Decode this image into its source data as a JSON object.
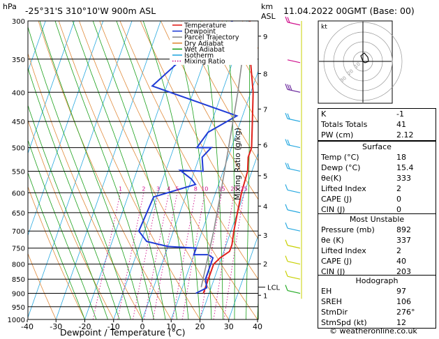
{
  "header": {
    "hpa_label": "hPa",
    "location": "-25°31'S  310°10'W  900m  ASL",
    "km_label": "km",
    "asl_label": "ASL",
    "datetime": "11.04.2022  00GMT  (Base: 00)"
  },
  "legend": [
    {
      "label": "Temperature",
      "color": "#e0201b"
    },
    {
      "label": "Dewpoint",
      "color": "#1f3bd6"
    },
    {
      "label": "Parcel Trajectory",
      "color": "#8c8c8c"
    },
    {
      "label": "Dry Adiabat",
      "color": "#e08a3a"
    },
    {
      "label": "Wet Adiabat",
      "color": "#1aa01a"
    },
    {
      "label": "Isotherm",
      "color": "#28a9e0"
    },
    {
      "label": "Mixing Ratio",
      "color": "#d0108c"
    }
  ],
  "chart_data": {
    "type": "line",
    "xlabel": "Dewpoint / Temperature (°C)",
    "ylabel_right": "Mixing Ratio (g/kg)",
    "x_ticks": [
      -40,
      -30,
      -20,
      -10,
      0,
      10,
      20,
      30,
      40
    ],
    "p_ticks": [
      300,
      350,
      400,
      450,
      500,
      550,
      600,
      650,
      700,
      750,
      800,
      850,
      900,
      950,
      1000
    ],
    "km_ticks": [
      {
        "label": "9",
        "p": 319
      },
      {
        "label": "8",
        "p": 371
      },
      {
        "label": "7",
        "p": 428
      },
      {
        "label": "6",
        "p": 494
      },
      {
        "label": "5",
        "p": 560
      },
      {
        "label": "4",
        "p": 633
      },
      {
        "label": "3",
        "p": 712
      },
      {
        "label": "2",
        "p": 799
      },
      {
        "label": "1",
        "p": 907
      }
    ],
    "lcl": {
      "label": "LCL",
      "p": 878
    },
    "mixing_ratio_labels": [
      "1",
      "2",
      "3",
      "4",
      "5",
      "8",
      "10",
      "15",
      "20",
      "25"
    ],
    "series": [
      {
        "name": "Temperature",
        "color": "#e0201b",
        "points": [
          [
            1.0,
            300
          ],
          [
            5.8,
            350
          ],
          [
            10.8,
            400
          ],
          [
            14.1,
            450
          ],
          [
            17.0,
            500
          ],
          [
            17.0,
            520
          ],
          [
            18.5,
            550
          ],
          [
            19.0,
            600
          ],
          [
            20.0,
            650
          ],
          [
            21.0,
            700
          ],
          [
            22.0,
            740
          ],
          [
            22.0,
            760
          ],
          [
            19.5,
            780
          ],
          [
            18.0,
            800
          ],
          [
            18.0,
            850
          ],
          [
            18.0,
            900
          ]
        ]
      },
      {
        "name": "Dewpoint",
        "color": "#1f3bd6",
        "points": [
          [
            -5,
            300
          ],
          [
            -18,
            350
          ],
          [
            -25,
            390
          ],
          [
            8,
            440
          ],
          [
            0,
            470
          ],
          [
            -2,
            500
          ],
          [
            3,
            500
          ],
          [
            1,
            520
          ],
          [
            3,
            550
          ],
          [
            -5,
            548
          ],
          [
            0,
            568
          ],
          [
            2,
            580
          ],
          [
            -11,
            610
          ],
          [
            -12,
            700
          ],
          [
            -8,
            730
          ],
          [
            0,
            745
          ],
          [
            10,
            750
          ],
          [
            10,
            770
          ],
          [
            15,
            770
          ],
          [
            17,
            780
          ],
          [
            17,
            850
          ],
          [
            18.5,
            880
          ],
          [
            15.4,
            900
          ]
        ]
      },
      {
        "name": "Parcel Trajectory",
        "color": "#8c8c8c",
        "points": [
          [
            16.5,
            878
          ],
          [
            15.5,
            800
          ],
          [
            14.0,
            700
          ],
          [
            11.8,
            600
          ],
          [
            9.0,
            500
          ],
          [
            5.5,
            400
          ],
          [
            3.0,
            350
          ],
          [
            0.6,
            300
          ]
        ]
      }
    ]
  },
  "hodograph": {
    "label": "kt",
    "ring_labels": [
      "10",
      "20",
      "30"
    ]
  },
  "indices": [
    {
      "label": "K",
      "value": "-1"
    },
    {
      "label": "Totals Totals",
      "value": "41"
    },
    {
      "label": "PW (cm)",
      "value": "2.12"
    }
  ],
  "surface": {
    "title": "Surface",
    "rows": [
      {
        "label": "Temp (°C)",
        "value": "18"
      },
      {
        "label": "Dewp (°C)",
        "value": "15.4"
      },
      {
        "label": "θe(K)",
        "value": "333"
      },
      {
        "label": "Lifted Index",
        "value": "2"
      },
      {
        "label": "CAPE (J)",
        "value": "0"
      },
      {
        "label": "CIN (J)",
        "value": "0"
      }
    ]
  },
  "most_unstable": {
    "title": "Most Unstable",
    "rows": [
      {
        "label": "Pressure (mb)",
        "value": "892"
      },
      {
        "label": "θe (K)",
        "value": "337"
      },
      {
        "label": "Lifted Index",
        "value": "2"
      },
      {
        "label": "CAPE (J)",
        "value": "40"
      },
      {
        "label": "CIN (J)",
        "value": "203"
      }
    ]
  },
  "hodo_table": {
    "title": "Hodograph",
    "rows": [
      {
        "label": "EH",
        "value": "97"
      },
      {
        "label": "SREH",
        "value": "106"
      },
      {
        "label": "StmDir",
        "value": "276°"
      },
      {
        "label": "StmSpd (kt)",
        "value": "12"
      }
    ]
  },
  "credit": "© weatheronline.co.uk"
}
